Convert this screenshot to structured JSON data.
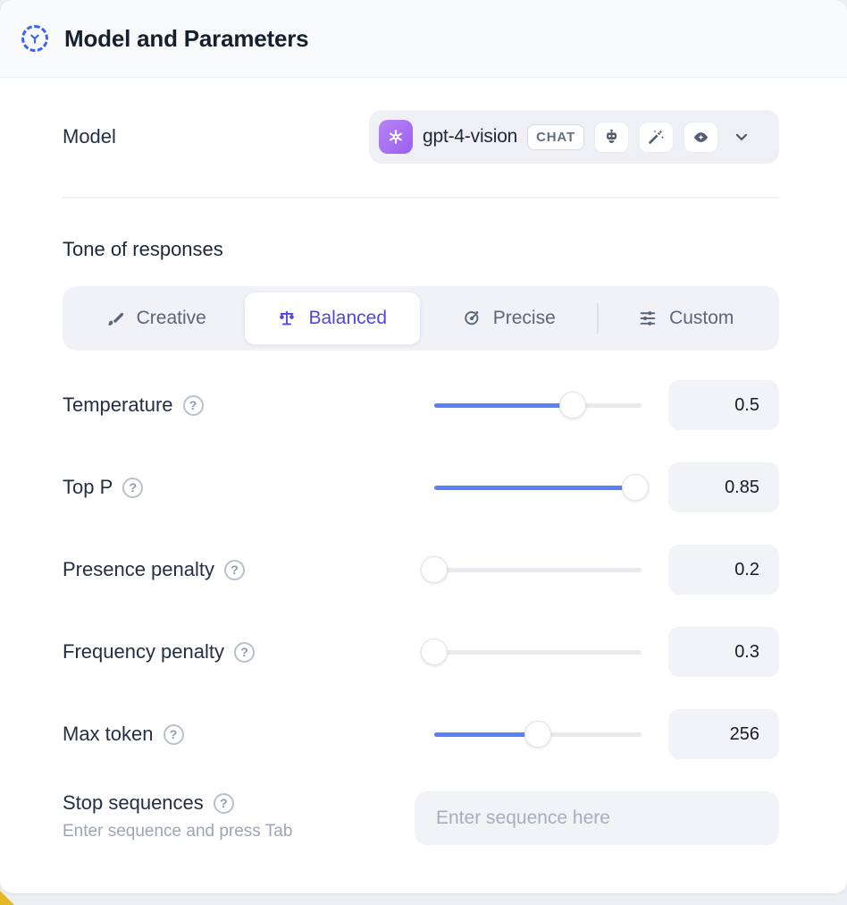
{
  "header": {
    "title": "Model and Parameters"
  },
  "model": {
    "label": "Model",
    "name": "gpt-4-vision",
    "type_badge": "CHAT",
    "logo": "openai-logo",
    "capability_icons": [
      "robot-icon",
      "magic-wand-icon",
      "vision-eye-icon"
    ]
  },
  "tone": {
    "heading": "Tone of responses",
    "selected": "Balanced",
    "options": [
      {
        "label": "Creative",
        "icon": "paintbrush-icon"
      },
      {
        "label": "Balanced",
        "icon": "balance-scale-icon"
      },
      {
        "label": "Precise",
        "icon": "target-icon"
      },
      {
        "label": "Custom",
        "icon": "sliders-icon"
      }
    ]
  },
  "parameters": {
    "rows": [
      {
        "label": "Temperature",
        "value": "0.5",
        "fill_percent": 67
      },
      {
        "label": "Top P",
        "value": "0.85",
        "fill_percent": 97
      },
      {
        "label": "Presence penalty",
        "value": "0.2",
        "fill_percent": 0
      },
      {
        "label": "Frequency penalty",
        "value": "0.3",
        "fill_percent": 0
      },
      {
        "label": "Max token",
        "value": "256",
        "fill_percent": 50
      }
    ],
    "help_glyph": "?"
  },
  "stop_sequences": {
    "label": "Stop sequences",
    "hint": "Enter sequence and press Tab",
    "placeholder": "Enter sequence here"
  },
  "colors": {
    "accent_blue": "#3b63f3",
    "accent_slider": "#5c7ffa",
    "selected_text": "#4f46e5",
    "bottom_strip": "#eceff2",
    "corner_accent": "#e4b824"
  }
}
